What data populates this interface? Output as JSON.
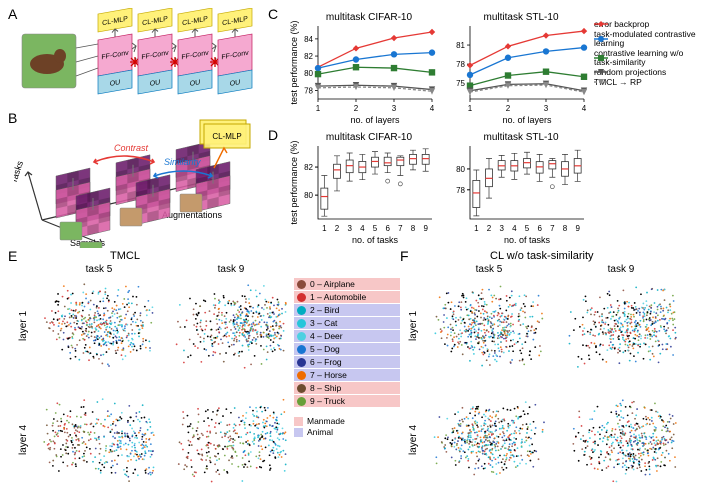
{
  "labels": {
    "A": "A",
    "B": "B",
    "C": "C",
    "D": "D",
    "E": "E",
    "F": "F"
  },
  "panelA": {
    "block_labels": {
      "clmlp": "CL-MLP",
      "ffconv": "FF-Conv",
      "ou": "OU"
    },
    "colors": {
      "clmlp_fill": "#fff17a",
      "clmlp_stroke": "#c4a800",
      "ffconv_fill": "#f5a9d0",
      "ffconv_stroke": "#c2185b",
      "ou_fill": "#a8d8e8",
      "ou_stroke": "#0277bd",
      "arrow": "#555555",
      "forbidden": "#d40000",
      "image_bg": "#7bb661"
    }
  },
  "panelB": {
    "axis_labels": {
      "tasks": "Tasks",
      "samples": "Samples",
      "augmentations": "Augmentations"
    },
    "arrows": {
      "contrast": "Contrast",
      "similarity": "Similarity"
    },
    "colors": {
      "contrast": "#e53935",
      "similarity": "#1976d2",
      "tile_a": "#d95fa5",
      "tile_b": "#6a1b6a",
      "axis": "#333333"
    },
    "clmlp": "CL-MLP"
  },
  "panelC": {
    "charts": [
      {
        "title": "multitask CIFAR-10",
        "xlabel": "no. of layers",
        "ylabel": "test performance (%)",
        "ylim": [
          77,
          85.5
        ],
        "yticks": [
          78,
          80,
          82,
          84
        ],
        "x": [
          1,
          2,
          3,
          4
        ],
        "series": [
          {
            "key": "eb",
            "y": [
              80.7,
              82.9,
              84.1,
              84.8
            ]
          },
          {
            "key": "tmcl",
            "y": [
              80.6,
              81.6,
              82.2,
              82.4
            ]
          },
          {
            "key": "clns",
            "y": [
              79.9,
              80.7,
              80.6,
              80.1
            ]
          },
          {
            "key": "rp",
            "y": [
              78.5,
              78.6,
              78.5,
              78.1
            ]
          },
          {
            "key": "tmrp",
            "y": [
              78.3,
              78.4,
              78.3,
              77.9
            ]
          }
        ],
        "err": {
          "eb": [
            0.2,
            0.2,
            0.2,
            0.3
          ],
          "tmcl": [
            0.2,
            0.2,
            0.2,
            0.3
          ],
          "clns": [
            0.2,
            0.25,
            0.3,
            0.35
          ],
          "rp": [
            0.15,
            0.2,
            0.25,
            0.35
          ],
          "tmrp": [
            0.15,
            0.2,
            0.25,
            0.35
          ]
        }
      },
      {
        "title": "multitask STL-10",
        "xlabel": "no. of layers",
        "ylabel": "",
        "ylim": [
          72.5,
          84
        ],
        "yticks": [
          75,
          78,
          81
        ],
        "x": [
          1,
          2,
          3,
          4
        ],
        "series": [
          {
            "key": "eb",
            "y": [
              77.8,
              80.8,
              82.5,
              83.2
            ]
          },
          {
            "key": "tmcl",
            "y": [
              76.3,
              79.0,
              80.0,
              80.6
            ]
          },
          {
            "key": "clns",
            "y": [
              74.6,
              76.2,
              76.8,
              76.0
            ]
          },
          {
            "key": "rp",
            "y": [
              73.8,
              74.8,
              74.9,
              73.8
            ]
          },
          {
            "key": "tmrp",
            "y": [
              73.6,
              74.6,
              74.7,
              73.6
            ]
          }
        ],
        "err": {
          "eb": [
            0.2,
            0.2,
            0.2,
            0.3
          ],
          "tmcl": [
            0.2,
            0.2,
            0.2,
            0.3
          ],
          "clns": [
            0.25,
            0.3,
            0.35,
            0.45
          ],
          "rp": [
            0.2,
            0.25,
            0.3,
            0.4
          ],
          "tmrp": [
            0.2,
            0.25,
            0.3,
            0.4
          ]
        }
      }
    ],
    "legend": [
      {
        "key": "eb",
        "label": "error backprop",
        "color": "#e53935",
        "marker": "diamond"
      },
      {
        "key": "tmcl",
        "label": "task-modulated contrastive learning",
        "color": "#1976d2",
        "marker": "circle"
      },
      {
        "key": "clns",
        "label": "contrastive learning w/o task-similarity",
        "color": "#2e7d32",
        "marker": "square"
      },
      {
        "key": "rp",
        "label": "random projections",
        "color": "#555555",
        "marker": "triangle"
      },
      {
        "key": "tmrp",
        "label": "TMCL → RP",
        "color": "#888888",
        "marker": "triangle",
        "dash": true
      }
    ],
    "grid_color": "#b0b0b0"
  },
  "panelD": {
    "charts": [
      {
        "title": "multitask CIFAR-10",
        "xlabel": "no. of tasks",
        "ylabel": "test performance (%)",
        "ylim": [
          78.3,
          83.5
        ],
        "yticks": [
          80,
          82
        ],
        "x": [
          1,
          2,
          3,
          4,
          5,
          6,
          7,
          8,
          9
        ],
        "boxes": [
          {
            "med": 79.9,
            "q1": 79.0,
            "q3": 80.5,
            "lo": 78.5,
            "hi": 81.4
          },
          {
            "med": 81.8,
            "q1": 81.2,
            "q3": 82.2,
            "lo": 80.3,
            "hi": 82.8
          },
          {
            "med": 82.1,
            "q1": 81.6,
            "q3": 82.5,
            "lo": 81.0,
            "hi": 83.0
          },
          {
            "med": 82.0,
            "q1": 81.6,
            "q3": 82.4,
            "lo": 81.1,
            "hi": 82.9
          },
          {
            "med": 82.4,
            "q1": 82.0,
            "q3": 82.7,
            "lo": 81.5,
            "hi": 83.1
          },
          {
            "med": 82.3,
            "q1": 82.1,
            "q3": 82.7,
            "lo": 81.6,
            "hi": 83.0,
            "outlier": 81.0
          },
          {
            "med": 82.5,
            "q1": 82.1,
            "q3": 82.7,
            "lo": 81.4,
            "hi": 82.8,
            "outlier": 80.8
          },
          {
            "med": 82.6,
            "q1": 82.2,
            "q3": 82.9,
            "lo": 81.8,
            "hi": 83.2
          },
          {
            "med": 82.6,
            "q1": 82.2,
            "q3": 82.9,
            "lo": 81.7,
            "hi": 83.3
          }
        ]
      },
      {
        "title": "multitask STL-10",
        "xlabel": "no. of tasks",
        "ylabel": "",
        "ylim": [
          75.2,
          82.2
        ],
        "yticks": [
          78,
          80
        ],
        "x": [
          1,
          2,
          3,
          4,
          5,
          6,
          7,
          8,
          9
        ],
        "boxes": [
          {
            "med": 77.7,
            "q1": 76.3,
            "q3": 78.9,
            "lo": 75.5,
            "hi": 79.9
          },
          {
            "med": 79.1,
            "q1": 78.3,
            "q3": 80.0,
            "lo": 77.2,
            "hi": 81.0
          },
          {
            "med": 80.3,
            "q1": 79.9,
            "q3": 80.8,
            "lo": 79.2,
            "hi": 81.3
          },
          {
            "med": 80.3,
            "q1": 79.8,
            "q3": 80.8,
            "lo": 79.0,
            "hi": 81.5
          },
          {
            "med": 80.6,
            "q1": 80.1,
            "q3": 81.0,
            "lo": 79.5,
            "hi": 81.6
          },
          {
            "med": 80.2,
            "q1": 79.6,
            "q3": 80.7,
            "lo": 78.8,
            "hi": 81.4
          },
          {
            "med": 80.5,
            "q1": 80.0,
            "q3": 80.8,
            "lo": 79.2,
            "hi": 81.0,
            "outlier": 78.3
          },
          {
            "med": 80.0,
            "q1": 79.3,
            "q3": 80.7,
            "lo": 78.5,
            "hi": 81.4
          },
          {
            "med": 80.3,
            "q1": 79.6,
            "q3": 81.0,
            "lo": 78.8,
            "hi": 81.8
          }
        ]
      }
    ],
    "box_color": "#333333",
    "median_color": "#e53935"
  },
  "panelEF": {
    "E_title": "TMCL",
    "F_title": "CL w/o task-similarity",
    "col_labels": [
      "task 5",
      "task 9"
    ],
    "row_labels": [
      "layer 1",
      "layer 4"
    ],
    "classes": [
      {
        "id": 0,
        "name": "Airplane",
        "color": "#8a4a3a"
      },
      {
        "id": 1,
        "name": "Automobile",
        "color": "#d32f2f"
      },
      {
        "id": 2,
        "name": "Bird",
        "color": "#00acc1"
      },
      {
        "id": 3,
        "name": "Cat",
        "color": "#26c6da"
      },
      {
        "id": 4,
        "name": "Deer",
        "color": "#4dd0e1"
      },
      {
        "id": 5,
        "name": "Dog",
        "color": "#1976d2"
      },
      {
        "id": 6,
        "name": "Frog",
        "color": "#283593"
      },
      {
        "id": 7,
        "name": "Horse",
        "color": "#ef6c00"
      },
      {
        "id": 8,
        "name": "Ship",
        "color": "#6d4c2f"
      },
      {
        "id": 9,
        "name": "Truck",
        "color": "#689f38"
      }
    ],
    "groups": [
      {
        "name": "Manmade",
        "color": "#f7c7c7",
        "members": [
          0,
          1,
          8,
          9
        ]
      },
      {
        "name": "Animal",
        "color": "#c7c7f0",
        "members": [
          2,
          3,
          4,
          5,
          6,
          7
        ]
      }
    ],
    "scatter_seed": 17,
    "points_per_cloud": 420
  }
}
